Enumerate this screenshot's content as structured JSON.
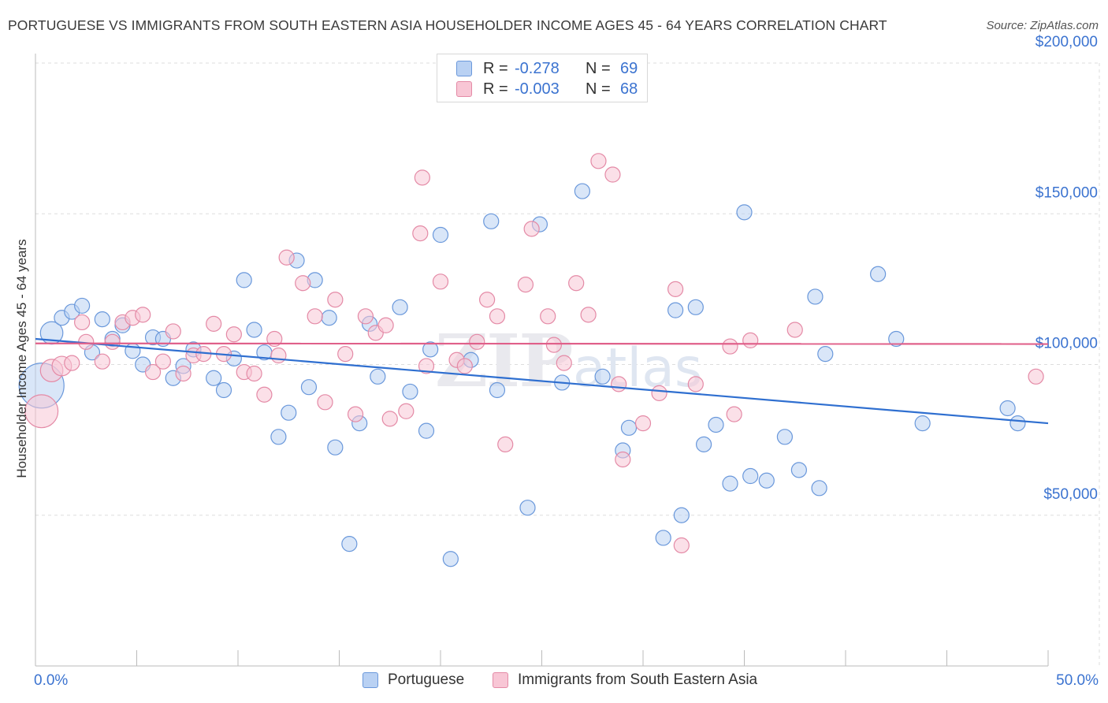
{
  "header": {
    "title": "PORTUGUESE VS IMMIGRANTS FROM SOUTH EASTERN ASIA HOUSEHOLDER INCOME AGES 45 - 64 YEARS CORRELATION CHART",
    "source": "Source: ZipAtlas.com"
  },
  "legend_top": {
    "row1": {
      "r_label": "R =",
      "r_value": "-0.278",
      "n_label": "N =",
      "n_value": "69"
    },
    "row2": {
      "r_label": "R =",
      "r_value": "-0.003",
      "n_label": "N =",
      "n_value": "68"
    }
  },
  "legend_bottom": {
    "portuguese": "Portuguese",
    "immigrants": "Immigrants from South Eastern Asia"
  },
  "colors": {
    "blue_fill": "#b9d1f3",
    "blue_stroke": "#6a98db",
    "blue_line": "#2f6fd0",
    "pink_fill": "#f8c6d5",
    "pink_stroke": "#e48aa6",
    "pink_line": "#e0608a",
    "tick_label": "#3b73d0",
    "grid": "#dddddd"
  },
  "chart_data": {
    "type": "scatter",
    "title": "PORTUGUESE VS IMMIGRANTS FROM SOUTH EASTERN ASIA HOUSEHOLDER INCOME AGES 45 - 64 YEARS CORRELATION CHART",
    "xlabel": "",
    "ylabel": "Householder Income Ages 45 - 64 years",
    "xlim": [
      0,
      50
    ],
    "ylim": [
      0,
      200000
    ],
    "x_tick_labels": [
      "0.0%",
      "50.0%"
    ],
    "y_ticks": [
      50000,
      100000,
      150000,
      200000
    ],
    "y_tick_labels": [
      "$50,000",
      "$100,000",
      "$150,000",
      "$200,000"
    ],
    "grid": true,
    "legend_position": "top-center",
    "watermark": "ZIPatlas",
    "series": [
      {
        "name": "Portuguese",
        "color": "#6a98db",
        "trend": {
          "x0": 0,
          "y0": 108500,
          "x1": 50,
          "y1": 80500
        },
        "points": [
          {
            "x": 0.3,
            "y": 93000,
            "s": 3
          },
          {
            "x": 0.8,
            "y": 110500,
            "s": 1.5
          },
          {
            "x": 1.3,
            "y": 115500,
            "s": 1
          },
          {
            "x": 1.8,
            "y": 117500,
            "s": 1
          },
          {
            "x": 2.3,
            "y": 119500,
            "s": 1
          },
          {
            "x": 2.8,
            "y": 104000,
            "s": 1
          },
          {
            "x": 3.3,
            "y": 115000,
            "s": 1
          },
          {
            "x": 3.8,
            "y": 108500,
            "s": 1
          },
          {
            "x": 4.3,
            "y": 113000,
            "s": 1
          },
          {
            "x": 4.8,
            "y": 104500,
            "s": 1
          },
          {
            "x": 5.3,
            "y": 100000,
            "s": 1
          },
          {
            "x": 5.8,
            "y": 109000,
            "s": 1
          },
          {
            "x": 6.3,
            "y": 108500,
            "s": 1
          },
          {
            "x": 6.8,
            "y": 95500,
            "s": 1
          },
          {
            "x": 7.3,
            "y": 99500,
            "s": 1
          },
          {
            "x": 7.8,
            "y": 105000,
            "s": 1
          },
          {
            "x": 8.8,
            "y": 95500,
            "s": 1
          },
          {
            "x": 9.3,
            "y": 91500,
            "s": 1
          },
          {
            "x": 9.8,
            "y": 102000,
            "s": 1
          },
          {
            "x": 10.3,
            "y": 128000,
            "s": 1
          },
          {
            "x": 10.8,
            "y": 111500,
            "s": 1
          },
          {
            "x": 11.3,
            "y": 104000,
            "s": 1
          },
          {
            "x": 12.0,
            "y": 76000,
            "s": 1
          },
          {
            "x": 12.5,
            "y": 84000,
            "s": 1
          },
          {
            "x": 12.9,
            "y": 134500,
            "s": 1
          },
          {
            "x": 13.5,
            "y": 92500,
            "s": 1
          },
          {
            "x": 13.8,
            "y": 128000,
            "s": 1
          },
          {
            "x": 14.5,
            "y": 115500,
            "s": 1
          },
          {
            "x": 14.8,
            "y": 72500,
            "s": 1
          },
          {
            "x": 15.5,
            "y": 40500,
            "s": 1
          },
          {
            "x": 16.0,
            "y": 80500,
            "s": 1
          },
          {
            "x": 16.5,
            "y": 113500,
            "s": 1
          },
          {
            "x": 16.9,
            "y": 96000,
            "s": 1
          },
          {
            "x": 18.0,
            "y": 119000,
            "s": 1
          },
          {
            "x": 18.5,
            "y": 91000,
            "s": 1
          },
          {
            "x": 19.3,
            "y": 78000,
            "s": 1
          },
          {
            "x": 19.5,
            "y": 105000,
            "s": 1
          },
          {
            "x": 20.0,
            "y": 143000,
            "s": 1
          },
          {
            "x": 20.5,
            "y": 35500,
            "s": 1
          },
          {
            "x": 21.5,
            "y": 101500,
            "s": 1
          },
          {
            "x": 22.5,
            "y": 147500,
            "s": 1
          },
          {
            "x": 22.8,
            "y": 91500,
            "s": 1
          },
          {
            "x": 24.3,
            "y": 52500,
            "s": 1
          },
          {
            "x": 24.9,
            "y": 146500,
            "s": 1
          },
          {
            "x": 26.0,
            "y": 94000,
            "s": 1
          },
          {
            "x": 27.0,
            "y": 157500,
            "s": 1
          },
          {
            "x": 28.0,
            "y": 96000,
            "s": 1
          },
          {
            "x": 29.0,
            "y": 71500,
            "s": 1
          },
          {
            "x": 29.3,
            "y": 79000,
            "s": 1
          },
          {
            "x": 31.0,
            "y": 42500,
            "s": 1
          },
          {
            "x": 31.6,
            "y": 118000,
            "s": 1
          },
          {
            "x": 31.9,
            "y": 50000,
            "s": 1
          },
          {
            "x": 32.6,
            "y": 119000,
            "s": 1
          },
          {
            "x": 33.0,
            "y": 73500,
            "s": 1
          },
          {
            "x": 33.6,
            "y": 80000,
            "s": 1
          },
          {
            "x": 34.3,
            "y": 60500,
            "s": 1
          },
          {
            "x": 35.0,
            "y": 150500,
            "s": 1
          },
          {
            "x": 35.3,
            "y": 63000,
            "s": 1
          },
          {
            "x": 36.1,
            "y": 61500,
            "s": 1
          },
          {
            "x": 37.0,
            "y": 76000,
            "s": 1
          },
          {
            "x": 37.7,
            "y": 65000,
            "s": 1
          },
          {
            "x": 38.5,
            "y": 122500,
            "s": 1
          },
          {
            "x": 38.7,
            "y": 59000,
            "s": 1
          },
          {
            "x": 39.0,
            "y": 103500,
            "s": 1
          },
          {
            "x": 41.6,
            "y": 130000,
            "s": 1
          },
          {
            "x": 42.5,
            "y": 108500,
            "s": 1
          },
          {
            "x": 43.8,
            "y": 80500,
            "s": 1
          },
          {
            "x": 48.0,
            "y": 85500,
            "s": 1
          },
          {
            "x": 48.5,
            "y": 80500,
            "s": 1
          }
        ]
      },
      {
        "name": "Immigrants from South Eastern Asia",
        "color": "#e48aa6",
        "trend": {
          "x0": 0,
          "y0": 107000,
          "x1": 50,
          "y1": 106800
        },
        "points": [
          {
            "x": 0.3,
            "y": 84500,
            "s": 2.2
          },
          {
            "x": 0.8,
            "y": 98000,
            "s": 1.5
          },
          {
            "x": 1.3,
            "y": 99500,
            "s": 1.3
          },
          {
            "x": 1.8,
            "y": 100500,
            "s": 1
          },
          {
            "x": 2.3,
            "y": 114000,
            "s": 1
          },
          {
            "x": 2.5,
            "y": 107500,
            "s": 1
          },
          {
            "x": 3.3,
            "y": 101000,
            "s": 1
          },
          {
            "x": 3.8,
            "y": 107500,
            "s": 1
          },
          {
            "x": 4.3,
            "y": 114000,
            "s": 1
          },
          {
            "x": 4.8,
            "y": 115500,
            "s": 1
          },
          {
            "x": 5.3,
            "y": 116500,
            "s": 1
          },
          {
            "x": 5.8,
            "y": 97500,
            "s": 1
          },
          {
            "x": 6.3,
            "y": 101000,
            "s": 1
          },
          {
            "x": 6.8,
            "y": 111000,
            "s": 1
          },
          {
            "x": 7.3,
            "y": 97000,
            "s": 1
          },
          {
            "x": 7.8,
            "y": 103000,
            "s": 1
          },
          {
            "x": 8.3,
            "y": 103500,
            "s": 1
          },
          {
            "x": 8.8,
            "y": 113500,
            "s": 1
          },
          {
            "x": 9.3,
            "y": 103500,
            "s": 1
          },
          {
            "x": 9.8,
            "y": 110000,
            "s": 1
          },
          {
            "x": 10.3,
            "y": 97500,
            "s": 1
          },
          {
            "x": 10.8,
            "y": 97000,
            "s": 1
          },
          {
            "x": 11.3,
            "y": 90000,
            "s": 1
          },
          {
            "x": 11.8,
            "y": 108500,
            "s": 1
          },
          {
            "x": 12.0,
            "y": 103000,
            "s": 1
          },
          {
            "x": 12.4,
            "y": 135500,
            "s": 1
          },
          {
            "x": 13.2,
            "y": 127000,
            "s": 1
          },
          {
            "x": 13.8,
            "y": 116000,
            "s": 1
          },
          {
            "x": 14.3,
            "y": 87500,
            "s": 1
          },
          {
            "x": 14.8,
            "y": 121500,
            "s": 1
          },
          {
            "x": 15.3,
            "y": 103500,
            "s": 1
          },
          {
            "x": 15.8,
            "y": 83500,
            "s": 1
          },
          {
            "x": 16.3,
            "y": 116000,
            "s": 1
          },
          {
            "x": 16.8,
            "y": 110500,
            "s": 1
          },
          {
            "x": 17.3,
            "y": 113000,
            "s": 1
          },
          {
            "x": 17.5,
            "y": 82000,
            "s": 1
          },
          {
            "x": 18.3,
            "y": 84500,
            "s": 1
          },
          {
            "x": 19.0,
            "y": 143500,
            "s": 1
          },
          {
            "x": 19.1,
            "y": 162000,
            "s": 1
          },
          {
            "x": 19.3,
            "y": 99500,
            "s": 1
          },
          {
            "x": 20.0,
            "y": 127500,
            "s": 1
          },
          {
            "x": 20.8,
            "y": 101500,
            "s": 1
          },
          {
            "x": 21.2,
            "y": 99500,
            "s": 1
          },
          {
            "x": 21.8,
            "y": 107500,
            "s": 1
          },
          {
            "x": 22.3,
            "y": 121500,
            "s": 1
          },
          {
            "x": 22.8,
            "y": 116000,
            "s": 1
          },
          {
            "x": 23.2,
            "y": 73500,
            "s": 1
          },
          {
            "x": 24.2,
            "y": 126500,
            "s": 1
          },
          {
            "x": 24.5,
            "y": 145000,
            "s": 1
          },
          {
            "x": 25.3,
            "y": 116000,
            "s": 1
          },
          {
            "x": 25.6,
            "y": 106500,
            "s": 1
          },
          {
            "x": 26.1,
            "y": 100500,
            "s": 1
          },
          {
            "x": 26.7,
            "y": 127000,
            "s": 1
          },
          {
            "x": 27.3,
            "y": 116500,
            "s": 1
          },
          {
            "x": 27.8,
            "y": 167500,
            "s": 1
          },
          {
            "x": 28.5,
            "y": 163000,
            "s": 1
          },
          {
            "x": 28.8,
            "y": 93500,
            "s": 1
          },
          {
            "x": 29.0,
            "y": 68500,
            "s": 1
          },
          {
            "x": 30.0,
            "y": 80500,
            "s": 1
          },
          {
            "x": 30.8,
            "y": 90500,
            "s": 1
          },
          {
            "x": 31.6,
            "y": 125000,
            "s": 1
          },
          {
            "x": 31.9,
            "y": 40000,
            "s": 1
          },
          {
            "x": 32.6,
            "y": 93500,
            "s": 1
          },
          {
            "x": 34.3,
            "y": 106000,
            "s": 1
          },
          {
            "x": 34.5,
            "y": 83500,
            "s": 1
          },
          {
            "x": 35.3,
            "y": 108000,
            "s": 1
          },
          {
            "x": 37.5,
            "y": 111500,
            "s": 1
          },
          {
            "x": 49.4,
            "y": 96000,
            "s": 1
          }
        ]
      }
    ]
  }
}
